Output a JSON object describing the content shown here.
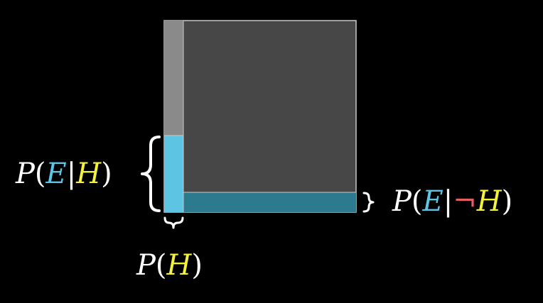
{
  "colors": {
    "background": "#000000",
    "square_fill": "#474747",
    "square_stroke": "#c8c8c8",
    "h_column_upper": "#8a8a8a",
    "e_given_h_fill": "#5ec4e4",
    "e_given_not_h_fill": "#2b7a8e",
    "label_white": "#ffffff",
    "symbol_e": "#5ec4e4",
    "symbol_h": "#f4f03c",
    "symbol_not": "#e46060"
  },
  "labels": {
    "e_given_h": {
      "p": "P",
      "open": "(",
      "e": "E",
      "bar": "|",
      "h": "H",
      "close": ")"
    },
    "e_given_not_h": {
      "p": "P",
      "open": "(",
      "e": "E",
      "bar": "|",
      "not": "¬",
      "h": "H",
      "close": ")"
    },
    "prob_h": {
      "p": "P",
      "open": "(",
      "h": "H",
      "close": ")"
    }
  }
}
